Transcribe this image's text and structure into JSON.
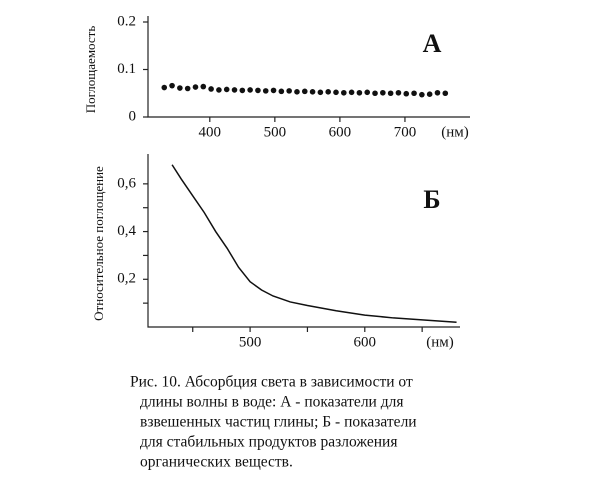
{
  "chart_data": [
    {
      "type": "scatter",
      "annotation": "А",
      "ylabel": "Поглощаемость",
      "xlabel": "(нм)",
      "x": [
        330,
        342,
        354,
        366,
        378,
        390,
        402,
        414,
        426,
        438,
        450,
        462,
        474,
        486,
        498,
        510,
        522,
        534,
        546,
        558,
        570,
        582,
        594,
        606,
        618,
        630,
        642,
        654,
        666,
        678,
        690,
        702,
        714,
        726,
        738,
        750,
        762
      ],
      "values": [
        0.062,
        0.066,
        0.061,
        0.06,
        0.063,
        0.064,
        0.059,
        0.057,
        0.058,
        0.057,
        0.056,
        0.057,
        0.056,
        0.055,
        0.056,
        0.054,
        0.055,
        0.053,
        0.054,
        0.053,
        0.052,
        0.053,
        0.052,
        0.051,
        0.052,
        0.051,
        0.052,
        0.05,
        0.051,
        0.05,
        0.051,
        0.049,
        0.05,
        0.047,
        0.048,
        0.051,
        0.05
      ],
      "color": "#111",
      "xlim": [
        305,
        800
      ],
      "ylim": [
        0,
        0.2
      ],
      "xticks": [
        400,
        500,
        600,
        700
      ],
      "yticks": [
        0,
        0.1,
        0.2
      ]
    },
    {
      "type": "line",
      "annotation": "Б",
      "ylabel": "Относительное поглощение",
      "xlabel": "(нм)",
      "x": [
        432,
        440,
        450,
        460,
        470,
        480,
        490,
        500,
        510,
        520,
        535,
        550,
        575,
        600,
        625,
        650,
        680
      ],
      "values": [
        0.68,
        0.62,
        0.55,
        0.48,
        0.4,
        0.33,
        0.25,
        0.19,
        0.155,
        0.13,
        0.105,
        0.09,
        0.068,
        0.05,
        0.038,
        0.03,
        0.02
      ],
      "color": "#111",
      "xlim": [
        411,
        683
      ],
      "ylim": [
        0,
        0.7
      ],
      "xticks": [
        500,
        600
      ],
      "xminor": [
        450,
        550,
        650
      ],
      "yticks": [
        {
          "value": 0.2,
          "label": "0,2"
        },
        {
          "value": 0.4,
          "label": "0,4"
        },
        {
          "value": 0.6,
          "label": "0,6"
        }
      ],
      "yminor": [
        0.1,
        0.3,
        0.5
      ]
    }
  ],
  "caption": [
    "Рис. 10. Абсорбция света в зависимости от",
    "длины волны в воде:  А - показатели для",
    "взвешенных частиц глины;  Б - показатели",
    "для стабильных продуктов разложения",
    "органических веществ."
  ]
}
